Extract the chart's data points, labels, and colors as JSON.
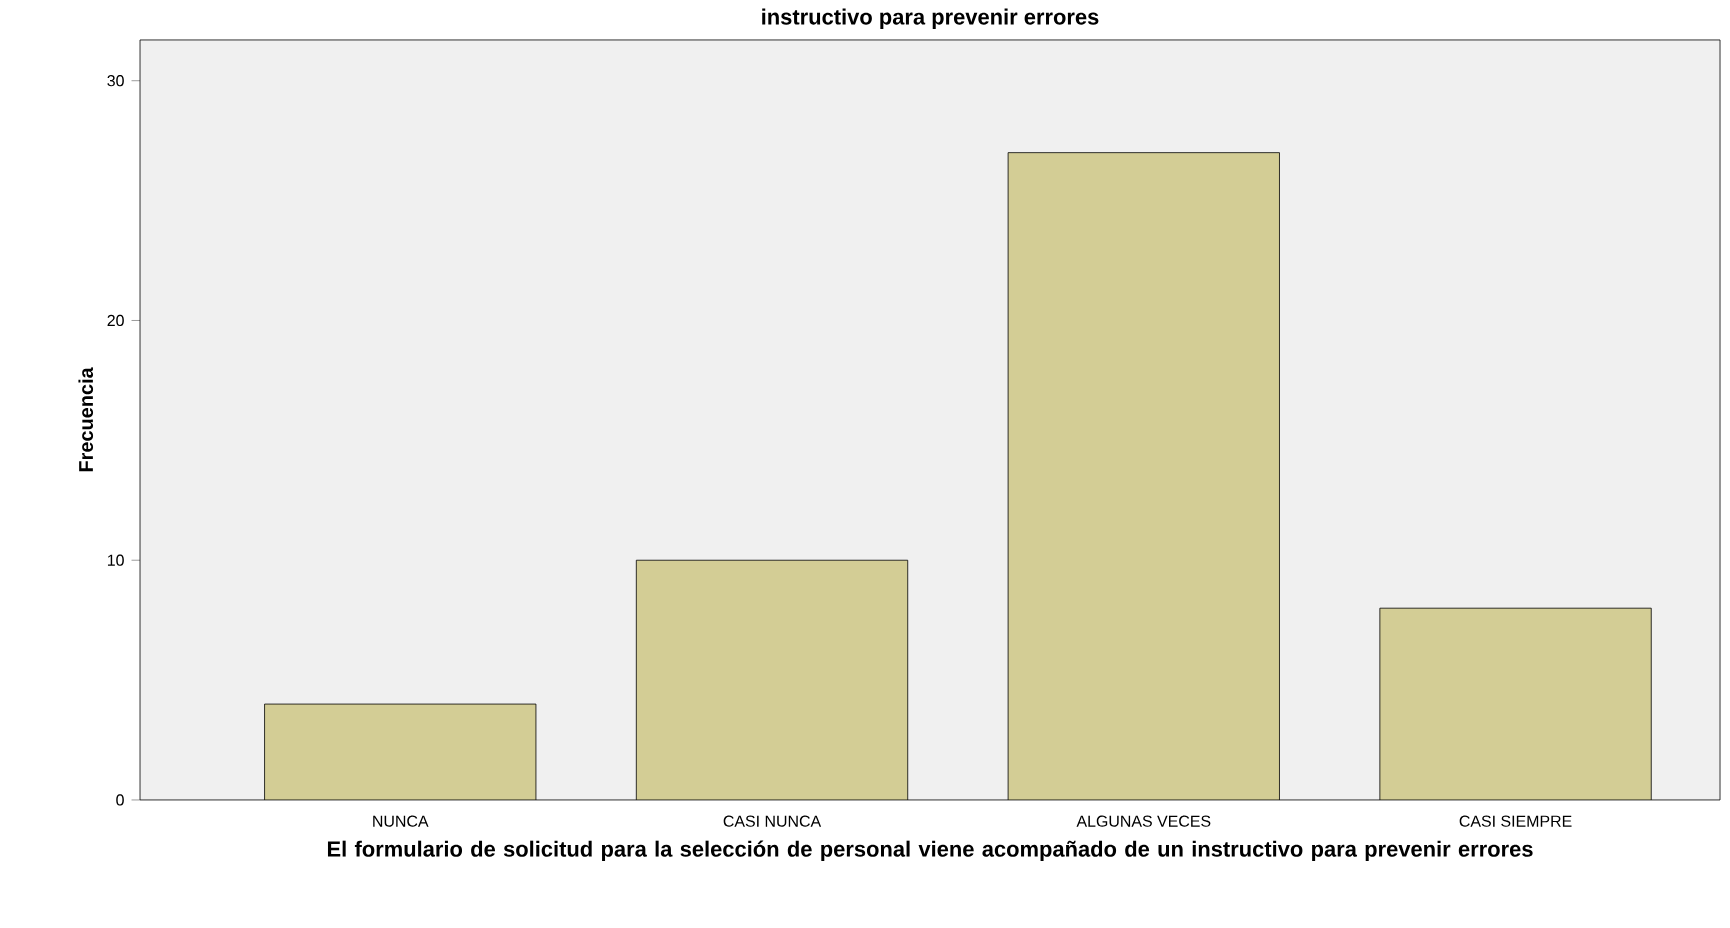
{
  "chart_data": {
    "type": "bar",
    "title": "instructivo para prevenir errores",
    "xlabel": "El formulario de solicitud para la selección de personal viene acompañado de un instructivo para prevenir errores",
    "ylabel": "Frecuencia",
    "categories": [
      "NUNCA",
      "CASI NUNCA",
      "ALGUNAS VECES",
      "CASI SIEMPRE"
    ],
    "values": [
      4,
      10,
      27,
      8
    ],
    "color": "#d3cd95",
    "ylim": [
      0,
      31.7
    ],
    "yticks": [
      0,
      10,
      20,
      30
    ],
    "grid": false
  }
}
